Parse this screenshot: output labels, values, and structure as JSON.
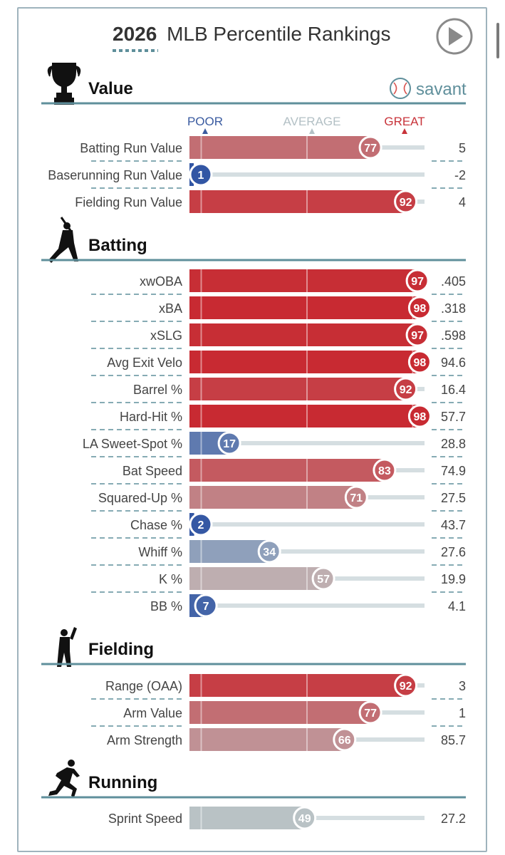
{
  "header": {
    "title_year": "2026",
    "title_rest": "MLB Percentile Rankings",
    "brand": "savant"
  },
  "scale": {
    "poor": "POOR",
    "average": "AVERAGE",
    "great": "GREAT"
  },
  "colors": {
    "accent_line": "#5f8f9b",
    "poor": "#3a5ba0",
    "great": "#c8333a",
    "average": "#a9b6bb"
  },
  "chart_data": {
    "type": "bar",
    "xlim": [
      0,
      100
    ],
    "sections": [
      {
        "name": "Value",
        "icon": "trophy-icon",
        "metrics": [
          {
            "label": "Batting Run Value",
            "percentile": 77,
            "value": "5"
          },
          {
            "label": "Baserunning Run Value",
            "percentile": 1,
            "value": "-2"
          },
          {
            "label": "Fielding Run Value",
            "percentile": 92,
            "value": "4"
          }
        ]
      },
      {
        "name": "Batting",
        "icon": "batter-icon",
        "metrics": [
          {
            "label": "xwOBA",
            "percentile": 97,
            "value": ".405"
          },
          {
            "label": "xBA",
            "percentile": 98,
            "value": ".318"
          },
          {
            "label": "xSLG",
            "percentile": 97,
            "value": ".598"
          },
          {
            "label": "Avg Exit Velo",
            "percentile": 98,
            "value": "94.6"
          },
          {
            "label": "Barrel %",
            "percentile": 92,
            "value": "16.4"
          },
          {
            "label": "Hard-Hit %",
            "percentile": 98,
            "value": "57.7"
          },
          {
            "label": "LA Sweet-Spot %",
            "percentile": 17,
            "value": "28.8"
          },
          {
            "label": "Bat Speed",
            "percentile": 83,
            "value": "74.9"
          },
          {
            "label": "Squared-Up %",
            "percentile": 71,
            "value": "27.5"
          },
          {
            "label": "Chase %",
            "percentile": 2,
            "value": "43.7"
          },
          {
            "label": "Whiff %",
            "percentile": 34,
            "value": "27.6"
          },
          {
            "label": "K %",
            "percentile": 57,
            "value": "19.9"
          },
          {
            "label": "BB %",
            "percentile": 7,
            "value": "4.1"
          }
        ]
      },
      {
        "name": "Fielding",
        "icon": "fielder-icon",
        "metrics": [
          {
            "label": "Range (OAA)",
            "percentile": 92,
            "value": "3"
          },
          {
            "label": "Arm Value",
            "percentile": 77,
            "value": "1"
          },
          {
            "label": "Arm Strength",
            "percentile": 66,
            "value": "85.7"
          }
        ]
      },
      {
        "name": "Running",
        "icon": "runner-icon",
        "metrics": [
          {
            "label": "Sprint Speed",
            "percentile": 49,
            "value": "27.2"
          }
        ]
      }
    ]
  }
}
